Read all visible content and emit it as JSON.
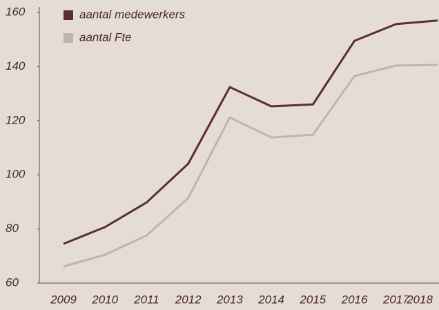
{
  "chart_data": {
    "type": "line",
    "categories": [
      "2009",
      "2010",
      "2011",
      "2012",
      "2013",
      "2014",
      "2015",
      "2016",
      "2017",
      "2018"
    ],
    "series": [
      {
        "name": "aantal medewerkers",
        "color": "#5a2d2f",
        "values": [
          74.5,
          80.7,
          89.8,
          104.1,
          132.4,
          125.3,
          126,
          149.5,
          155.7,
          157
        ]
      },
      {
        "name": "aantal Fte",
        "color": "#bfb4b0",
        "values": [
          66.1,
          70.5,
          77.6,
          91.4,
          121.2,
          113.8,
          114.8,
          136.5,
          140.4,
          140.6
        ]
      }
    ],
    "ylim": [
      60,
      160
    ],
    "yticks": [
      60,
      80,
      100,
      120,
      140,
      160
    ],
    "grid": false,
    "legend": "top-left"
  }
}
